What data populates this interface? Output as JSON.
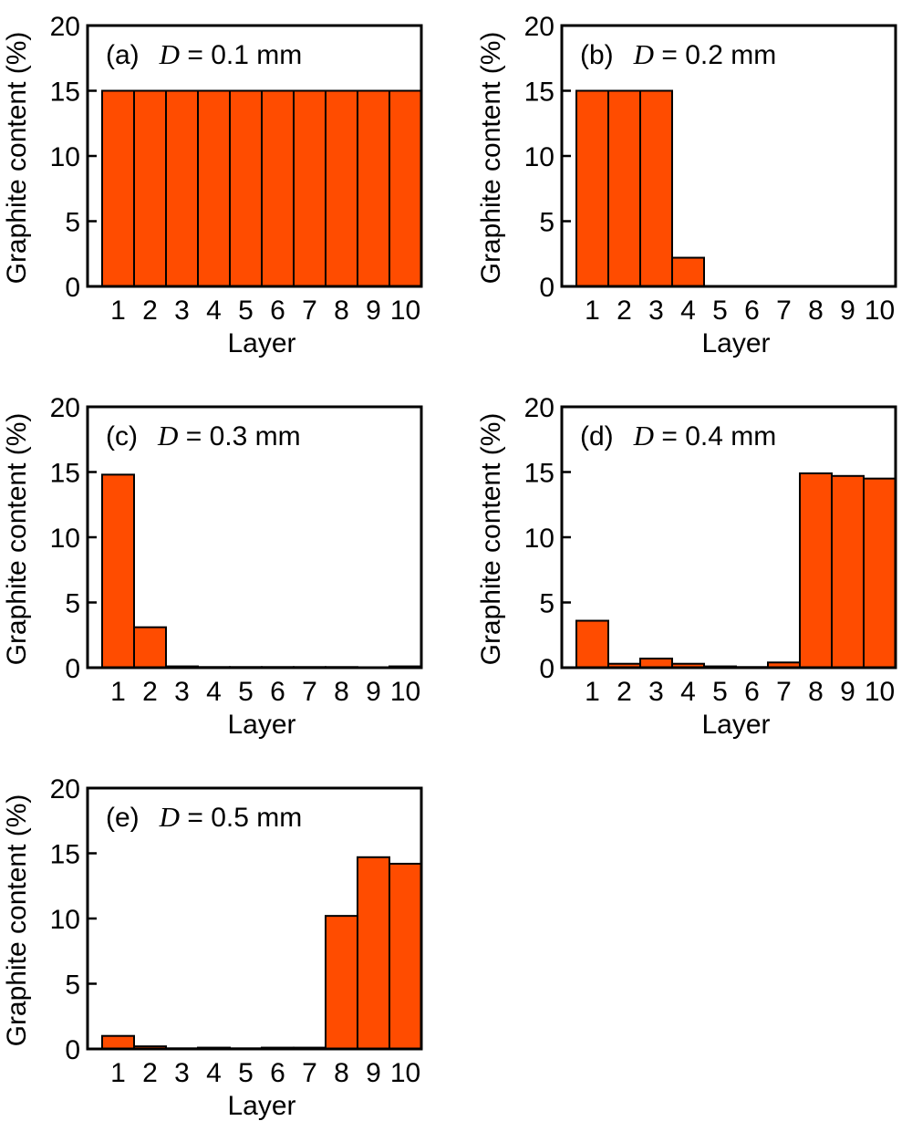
{
  "colors": {
    "bar_fill": "#ff4c00",
    "bar_stroke": "#000000",
    "axis": "#000000",
    "background": "#ffffff"
  },
  "chart_data": [
    {
      "type": "bar",
      "panel_label": "(a)",
      "title_var": "D",
      "title_rest": " = 0.1 mm",
      "xlabel": "Layer",
      "ylabel": "Graphite content (%)",
      "categories": [
        "1",
        "2",
        "3",
        "4",
        "5",
        "6",
        "7",
        "8",
        "9",
        "10"
      ],
      "values": [
        15,
        15,
        15,
        15,
        15,
        15,
        15,
        15,
        15,
        15
      ],
      "ylim": [
        0,
        20
      ],
      "yticks": [
        0,
        5,
        10,
        15,
        20
      ]
    },
    {
      "type": "bar",
      "panel_label": "(b)",
      "title_var": "D",
      "title_rest": " = 0.2 mm",
      "xlabel": "Layer",
      "ylabel": "Graphite content (%)",
      "categories": [
        "1",
        "2",
        "3",
        "4",
        "5",
        "6",
        "7",
        "8",
        "9",
        "10"
      ],
      "values": [
        15,
        15,
        15,
        2.2,
        0,
        0,
        0,
        0,
        0,
        0
      ],
      "ylim": [
        0,
        20
      ],
      "yticks": [
        0,
        5,
        10,
        15,
        20
      ]
    },
    {
      "type": "bar",
      "panel_label": "(c)",
      "title_var": "D",
      "title_rest": " = 0.3 mm",
      "xlabel": "Layer",
      "ylabel": "Graphite content (%)",
      "categories": [
        "1",
        "2",
        "3",
        "4",
        "5",
        "6",
        "7",
        "8",
        "9",
        "10"
      ],
      "values": [
        14.8,
        3.1,
        0.1,
        0.05,
        0.05,
        0.05,
        0.05,
        0.05,
        0.03,
        0.1
      ],
      "ylim": [
        0,
        20
      ],
      "yticks": [
        0,
        5,
        10,
        15,
        20
      ]
    },
    {
      "type": "bar",
      "panel_label": "(d)",
      "title_var": "D",
      "title_rest": " = 0.4 mm",
      "xlabel": "Layer",
      "ylabel": "Graphite content (%)",
      "categories": [
        "1",
        "2",
        "3",
        "4",
        "5",
        "6",
        "7",
        "8",
        "9",
        "10"
      ],
      "values": [
        3.6,
        0.3,
        0.7,
        0.3,
        0.1,
        0.05,
        0.4,
        14.9,
        14.7,
        14.5
      ],
      "ylim": [
        0,
        20
      ],
      "yticks": [
        0,
        5,
        10,
        15,
        20
      ]
    },
    {
      "type": "bar",
      "panel_label": "(e)",
      "title_var": "D",
      "title_rest": " = 0.5 mm",
      "xlabel": "Layer",
      "ylabel": "Graphite content (%)",
      "categories": [
        "1",
        "2",
        "3",
        "4",
        "5",
        "6",
        "7",
        "8",
        "9",
        "10"
      ],
      "values": [
        1.0,
        0.2,
        0.05,
        0.1,
        0.05,
        0.1,
        0.1,
        10.2,
        14.7,
        14.2
      ],
      "ylim": [
        0,
        20
      ],
      "yticks": [
        0,
        5,
        10,
        15,
        20
      ]
    }
  ]
}
